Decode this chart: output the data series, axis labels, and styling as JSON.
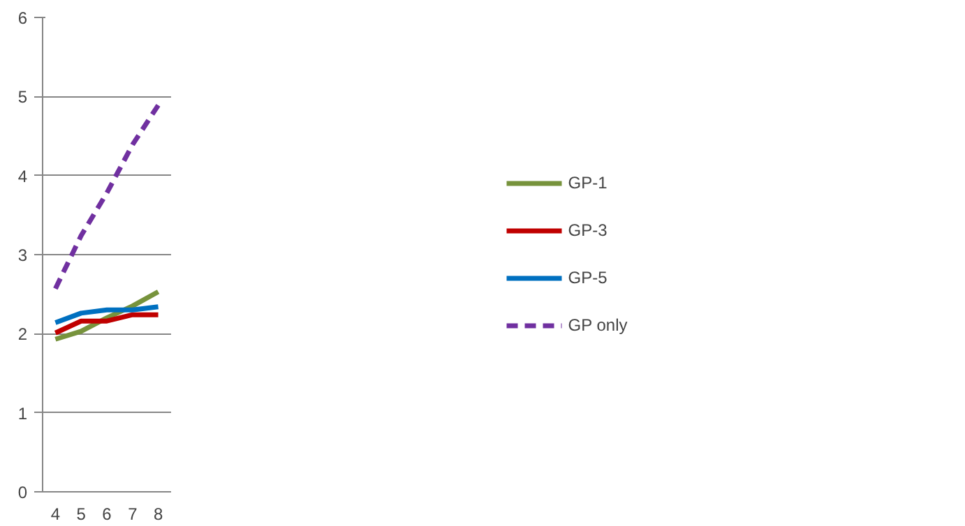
{
  "chart_data": {
    "type": "line",
    "categories": [
      "4",
      "5",
      "6",
      "7",
      "8"
    ],
    "series": [
      {
        "name": "GP-1",
        "color": "#77933c",
        "values": [
          1.93,
          2.03,
          2.2,
          2.35,
          2.53
        ]
      },
      {
        "name": "GP-3",
        "color": "#c00000",
        "values": [
          2.01,
          2.16,
          2.16,
          2.24,
          2.24
        ]
      },
      {
        "name": "GP-5",
        "color": "#0070c0",
        "values": [
          2.14,
          2.26,
          2.3,
          2.3,
          2.34
        ]
      },
      {
        "name": "GP only",
        "color": "#7030a0",
        "values": [
          2.57,
          3.24,
          3.78,
          4.39,
          4.89
        ],
        "line_style": "dashed"
      }
    ],
    "ylim": [
      0,
      6
    ],
    "yticks": [
      0,
      1,
      2,
      3,
      4,
      5,
      6
    ],
    "grid": "y",
    "legend": "right",
    "marker": "none"
  }
}
